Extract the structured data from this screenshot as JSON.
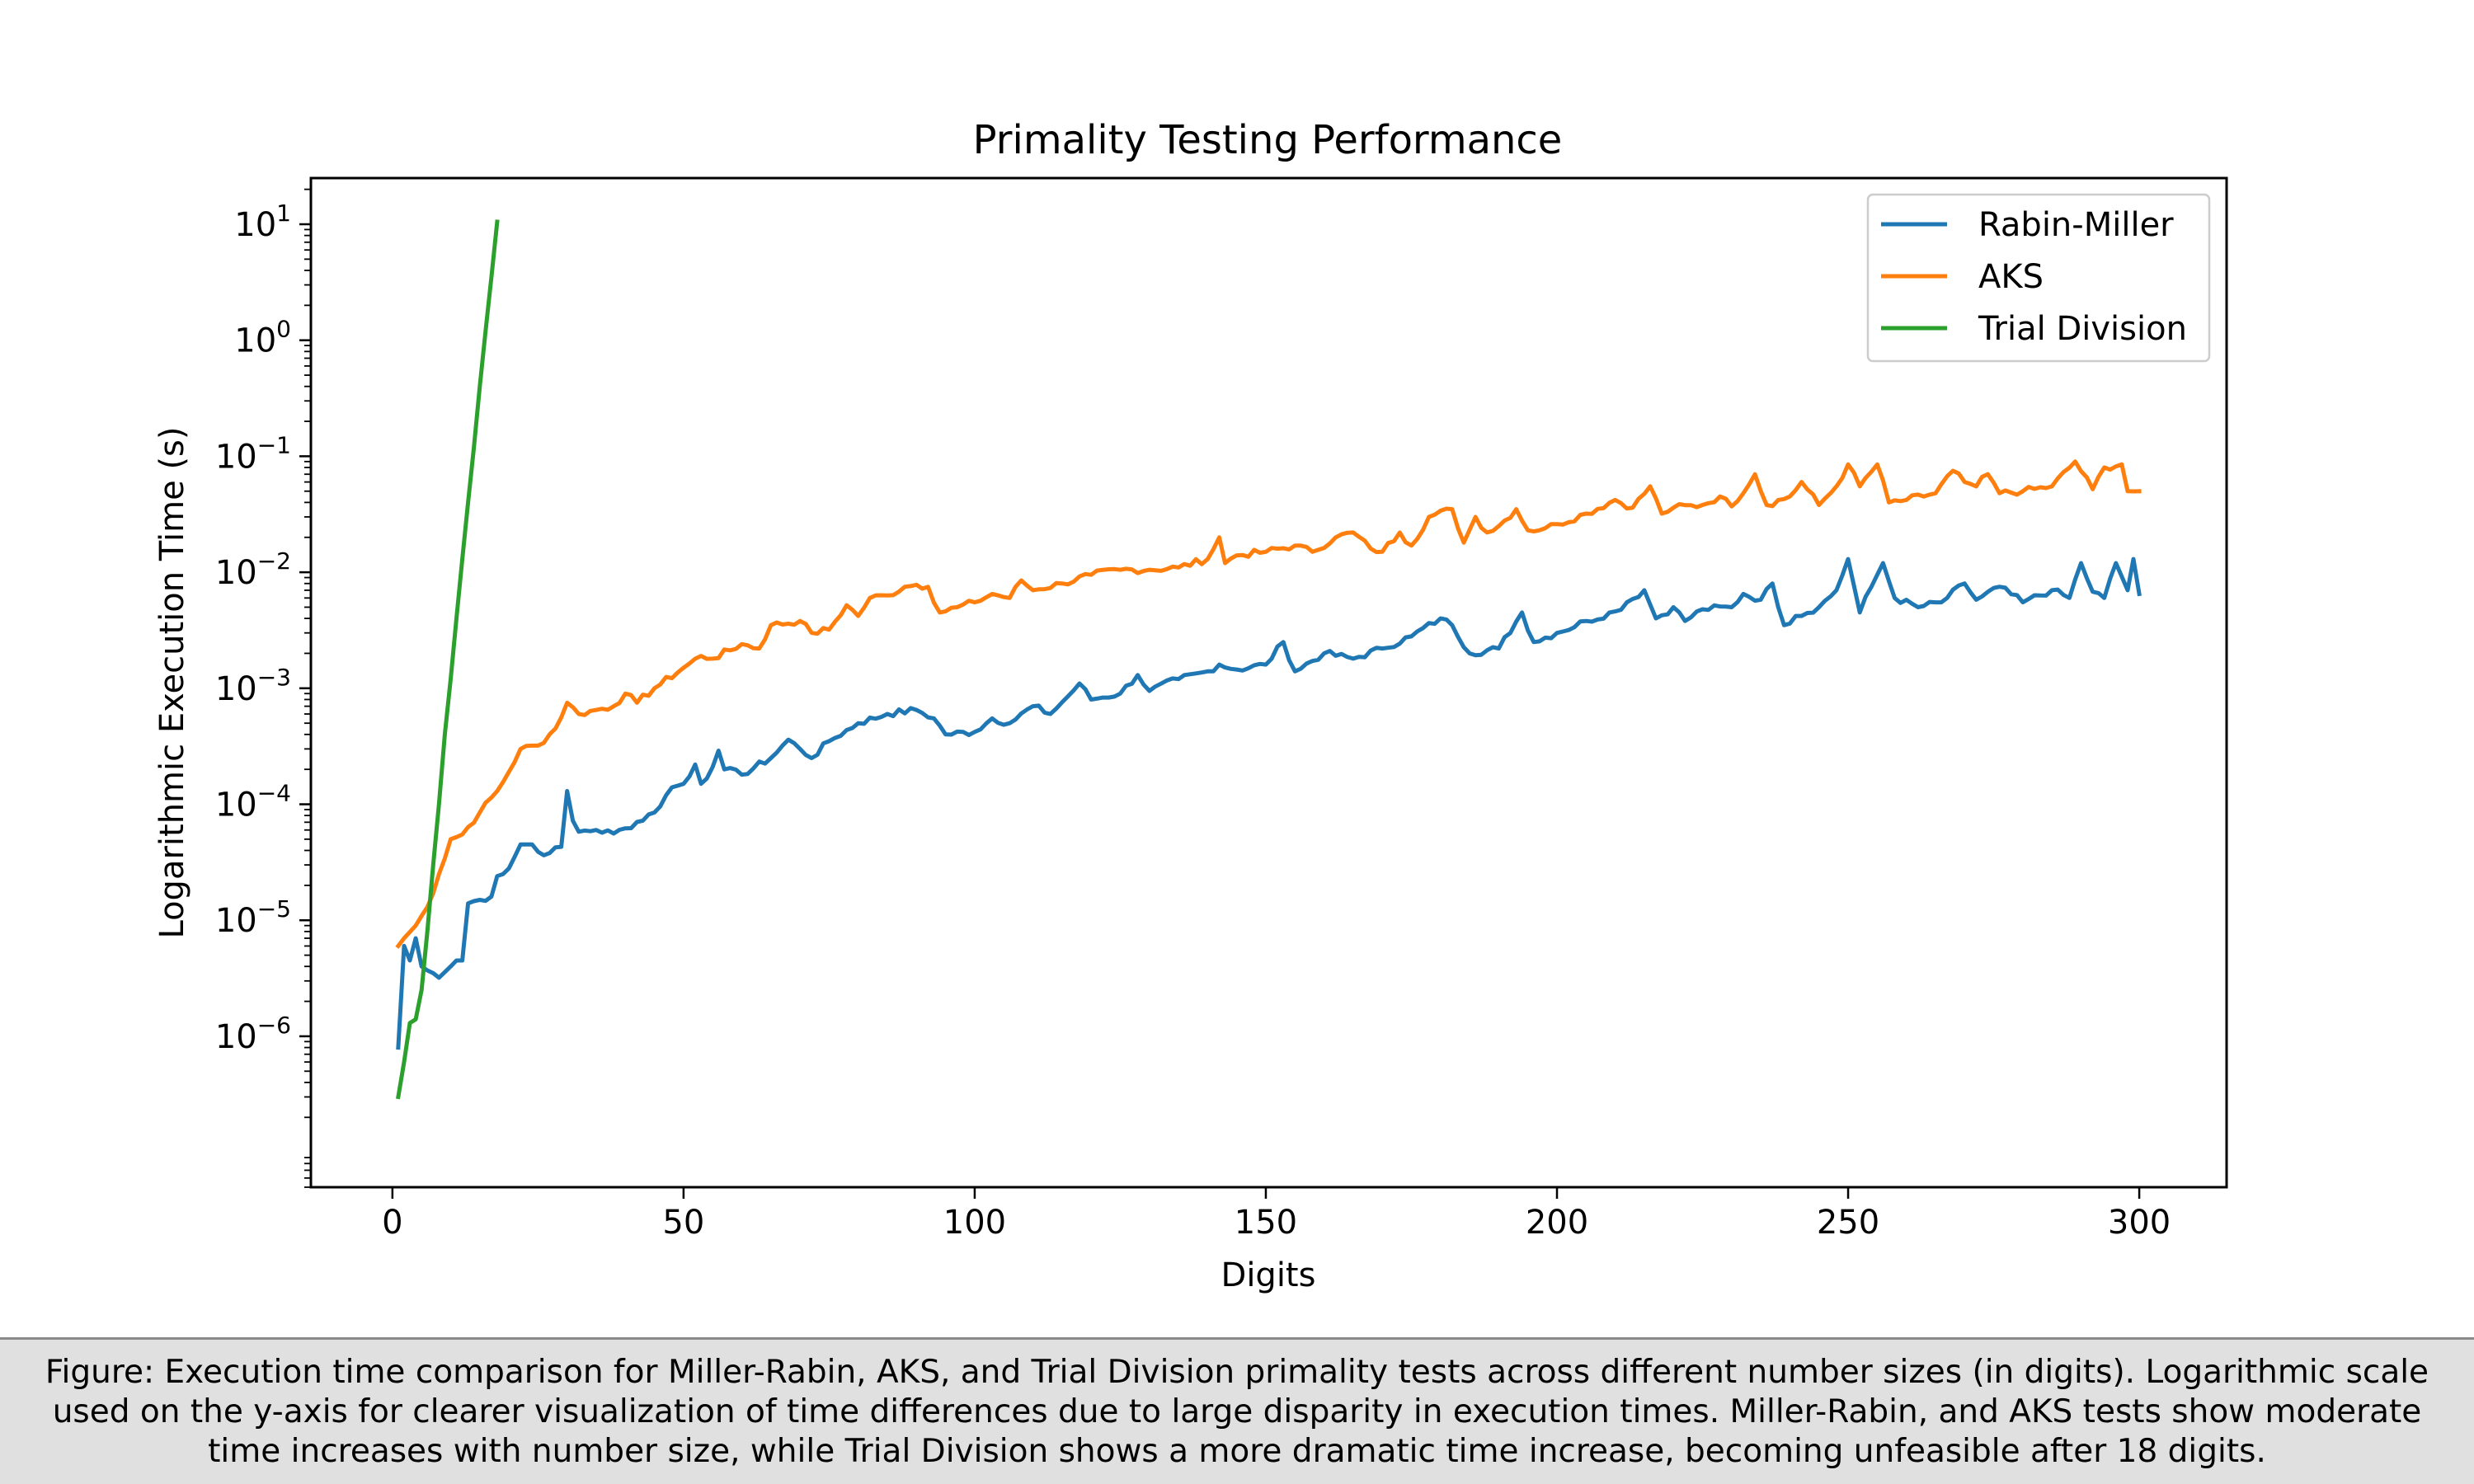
{
  "chart_data": {
    "type": "line",
    "title": "Primality Testing Performance",
    "xlabel": "Digits",
    "ylabel": "Logarithmic Execution Time (s)",
    "xlim": [
      -14,
      315
    ],
    "ylim": [
      5e-08,
      25
    ],
    "yscale": "log",
    "x_ticks": [
      0,
      50,
      100,
      150,
      200,
      250,
      300
    ],
    "y_tick_exponents": [
      -6,
      -5,
      -4,
      -3,
      -2,
      -1,
      0,
      1
    ],
    "legend_position": "top-right",
    "grid": false,
    "series": [
      {
        "name": "Rabin-Miller",
        "color": "#1f77b4",
        "anchors": [
          [
            1,
            8e-07
          ],
          [
            2,
            6e-06
          ],
          [
            3,
            4.5e-06
          ],
          [
            4,
            7e-06
          ],
          [
            5,
            4e-06
          ],
          [
            6,
            3.7e-06
          ],
          [
            7,
            3.5e-06
          ],
          [
            8,
            3.2e-06
          ],
          [
            10,
            4e-06
          ],
          [
            11,
            4.5e-06
          ],
          [
            12,
            4.5e-06
          ],
          [
            13,
            1.4e-05
          ],
          [
            15,
            1.5e-05
          ],
          [
            17,
            1.6e-05
          ],
          [
            18,
            2.4e-05
          ],
          [
            20,
            2.8e-05
          ],
          [
            22,
            4.5e-05
          ],
          [
            24,
            4.5e-05
          ],
          [
            25,
            3.9e-05
          ],
          [
            27,
            3.8e-05
          ],
          [
            29,
            4.3e-05
          ],
          [
            30,
            0.00013
          ],
          [
            31,
            7.2e-05
          ],
          [
            32,
            5.8e-05
          ],
          [
            35,
            6e-05
          ],
          [
            38,
            5.6e-05
          ],
          [
            40,
            6.2e-05
          ],
          [
            45,
            8.5e-05
          ],
          [
            48,
            0.00014
          ],
          [
            50,
            0.00015
          ],
          [
            52,
            0.00022
          ],
          [
            53,
            0.00015
          ],
          [
            55,
            0.00021
          ],
          [
            56,
            0.00029
          ],
          [
            57,
            0.0002
          ],
          [
            60,
            0.00018
          ],
          [
            65,
            0.00025
          ],
          [
            68,
            0.00036
          ],
          [
            70,
            0.0003
          ],
          [
            72,
            0.00025
          ],
          [
            75,
            0.00035
          ],
          [
            80,
            0.0005
          ],
          [
            85,
            0.0006
          ],
          [
            90,
            0.00065
          ],
          [
            93,
            0.00055
          ],
          [
            95,
            0.0004
          ],
          [
            100,
            0.00042
          ],
          [
            103,
            0.00055
          ],
          [
            106,
            0.0005
          ],
          [
            110,
            0.0007
          ],
          [
            113,
            0.0006
          ],
          [
            116,
            0.00085
          ],
          [
            118,
            0.0011
          ],
          [
            120,
            0.0008
          ],
          [
            125,
            0.0009
          ],
          [
            128,
            0.0013
          ],
          [
            130,
            0.00095
          ],
          [
            135,
            0.0012
          ],
          [
            140,
            0.0014
          ],
          [
            142,
            0.0016
          ],
          [
            145,
            0.00145
          ],
          [
            150,
            0.0016
          ],
          [
            153,
            0.0025
          ],
          [
            155,
            0.0014
          ],
          [
            160,
            0.002
          ],
          [
            165,
            0.0018
          ],
          [
            170,
            0.0022
          ],
          [
            175,
            0.0028
          ],
          [
            180,
            0.004
          ],
          [
            182,
            0.0035
          ],
          [
            185,
            0.002
          ],
          [
            190,
            0.0022
          ],
          [
            194,
            0.0045
          ],
          [
            196,
            0.0025
          ],
          [
            200,
            0.003
          ],
          [
            205,
            0.0038
          ],
          [
            210,
            0.0046
          ],
          [
            212,
            0.0055
          ],
          [
            215,
            0.007
          ],
          [
            217,
            0.004
          ],
          [
            220,
            0.005
          ],
          [
            222,
            0.0038
          ],
          [
            225,
            0.0048
          ],
          [
            230,
            0.005
          ],
          [
            232,
            0.0065
          ],
          [
            235,
            0.0058
          ],
          [
            237,
            0.008
          ],
          [
            239,
            0.0035
          ],
          [
            241,
            0.0042
          ],
          [
            245,
            0.005
          ],
          [
            248,
            0.007
          ],
          [
            250,
            0.013
          ],
          [
            252,
            0.0045
          ],
          [
            254,
            0.0075
          ],
          [
            256,
            0.012
          ],
          [
            258,
            0.006
          ],
          [
            262,
            0.005
          ],
          [
            266,
            0.0055
          ],
          [
            270,
            0.008
          ],
          [
            272,
            0.0058
          ],
          [
            276,
            0.0075
          ],
          [
            280,
            0.0055
          ],
          [
            285,
            0.007
          ],
          [
            288,
            0.006
          ],
          [
            290,
            0.012
          ],
          [
            292,
            0.0068
          ],
          [
            294,
            0.006
          ],
          [
            296,
            0.012
          ],
          [
            298,
            0.007
          ],
          [
            299,
            0.013
          ],
          [
            300,
            0.0065
          ]
        ]
      },
      {
        "name": "AKS",
        "color": "#ff7f0e",
        "anchors": [
          [
            1,
            6e-06
          ],
          [
            2,
            7e-06
          ],
          [
            4,
            9e-06
          ],
          [
            6,
            1.3e-05
          ],
          [
            8,
            2.5e-05
          ],
          [
            10,
            5e-05
          ],
          [
            12,
            5.5e-05
          ],
          [
            15,
            8.5e-05
          ],
          [
            18,
            0.00013
          ],
          [
            20,
            0.00019
          ],
          [
            22,
            0.0003
          ],
          [
            25,
            0.00032
          ],
          [
            28,
            0.00045
          ],
          [
            30,
            0.00075
          ],
          [
            32,
            0.0006
          ],
          [
            35,
            0.00065
          ],
          [
            38,
            0.0007
          ],
          [
            40,
            0.0009
          ],
          [
            42,
            0.00075
          ],
          [
            45,
            0.001
          ],
          [
            50,
            0.0015
          ],
          [
            53,
            0.0019
          ],
          [
            55,
            0.0018
          ],
          [
            60,
            0.0024
          ],
          [
            63,
            0.0022
          ],
          [
            65,
            0.0035
          ],
          [
            70,
            0.0038
          ],
          [
            72,
            0.003
          ],
          [
            75,
            0.0032
          ],
          [
            78,
            0.0052
          ],
          [
            80,
            0.0042
          ],
          [
            82,
            0.006
          ],
          [
            85,
            0.0063
          ],
          [
            88,
            0.0075
          ],
          [
            90,
            0.0078
          ],
          [
            92,
            0.0075
          ],
          [
            94,
            0.0045
          ],
          [
            97,
            0.005
          ],
          [
            100,
            0.0055
          ],
          [
            103,
            0.0065
          ],
          [
            106,
            0.006
          ],
          [
            108,
            0.0085
          ],
          [
            110,
            0.007
          ],
          [
            115,
            0.008
          ],
          [
            120,
            0.0095
          ],
          [
            125,
            0.0105
          ],
          [
            130,
            0.0105
          ],
          [
            135,
            0.011
          ],
          [
            140,
            0.013
          ],
          [
            142,
            0.02
          ],
          [
            143,
            0.012
          ],
          [
            145,
            0.014
          ],
          [
            150,
            0.015
          ],
          [
            155,
            0.017
          ],
          [
            158,
            0.015
          ],
          [
            162,
            0.02
          ],
          [
            165,
            0.022
          ],
          [
            168,
            0.016
          ],
          [
            170,
            0.015
          ],
          [
            173,
            0.022
          ],
          [
            175,
            0.017
          ],
          [
            178,
            0.03
          ],
          [
            182,
            0.035
          ],
          [
            184,
            0.018
          ],
          [
            186,
            0.03
          ],
          [
            188,
            0.022
          ],
          [
            190,
            0.025
          ],
          [
            193,
            0.035
          ],
          [
            195,
            0.023
          ],
          [
            198,
            0.024
          ],
          [
            200,
            0.026
          ],
          [
            205,
            0.032
          ],
          [
            210,
            0.042
          ],
          [
            213,
            0.036
          ],
          [
            216,
            0.055
          ],
          [
            218,
            0.032
          ],
          [
            220,
            0.036
          ],
          [
            225,
            0.038
          ],
          [
            228,
            0.045
          ],
          [
            230,
            0.037
          ],
          [
            234,
            0.07
          ],
          [
            236,
            0.038
          ],
          [
            240,
            0.045
          ],
          [
            242,
            0.06
          ],
          [
            245,
            0.038
          ],
          [
            248,
            0.055
          ],
          [
            250,
            0.085
          ],
          [
            252,
            0.055
          ],
          [
            255,
            0.085
          ],
          [
            257,
            0.04
          ],
          [
            260,
            0.042
          ],
          [
            265,
            0.048
          ],
          [
            268,
            0.075
          ],
          [
            270,
            0.06
          ],
          [
            272,
            0.055
          ],
          [
            274,
            0.07
          ],
          [
            276,
            0.048
          ],
          [
            280,
            0.05
          ],
          [
            285,
            0.055
          ],
          [
            289,
            0.09
          ],
          [
            292,
            0.052
          ],
          [
            294,
            0.08
          ],
          [
            297,
            0.085
          ],
          [
            298,
            0.05
          ],
          [
            300,
            0.05
          ]
        ]
      },
      {
        "name": "Trial Division",
        "color": "#2ca02c",
        "anchors": [
          [
            1,
            3e-07
          ],
          [
            2,
            6e-07
          ],
          [
            3,
            1.3e-06
          ],
          [
            4,
            1.4e-06
          ],
          [
            5,
            2.5e-06
          ],
          [
            6,
            8e-06
          ],
          [
            7,
            3e-05
          ],
          [
            8,
            0.0001
          ],
          [
            9,
            0.0004
          ],
          [
            10,
            0.0012
          ],
          [
            11,
            0.004
          ],
          [
            12,
            0.013
          ],
          [
            13,
            0.04
          ],
          [
            14,
            0.12
          ],
          [
            15,
            0.4
          ],
          [
            16,
            1.2
          ],
          [
            17,
            3.5
          ],
          [
            18,
            10.5
          ]
        ]
      }
    ]
  },
  "caption": "Figure: Execution time comparison for Miller-Rabin, AKS, and Trial Division primality tests across different number sizes (in digits). Logarithmic scale used on the y-axis for clearer visualization of time differences due to large disparity in execution times. Miller-Rabin, and AKS tests show moderate time increases with number size, while Trial Division shows a more dramatic time increase, becoming unfeasible after 18 digits."
}
